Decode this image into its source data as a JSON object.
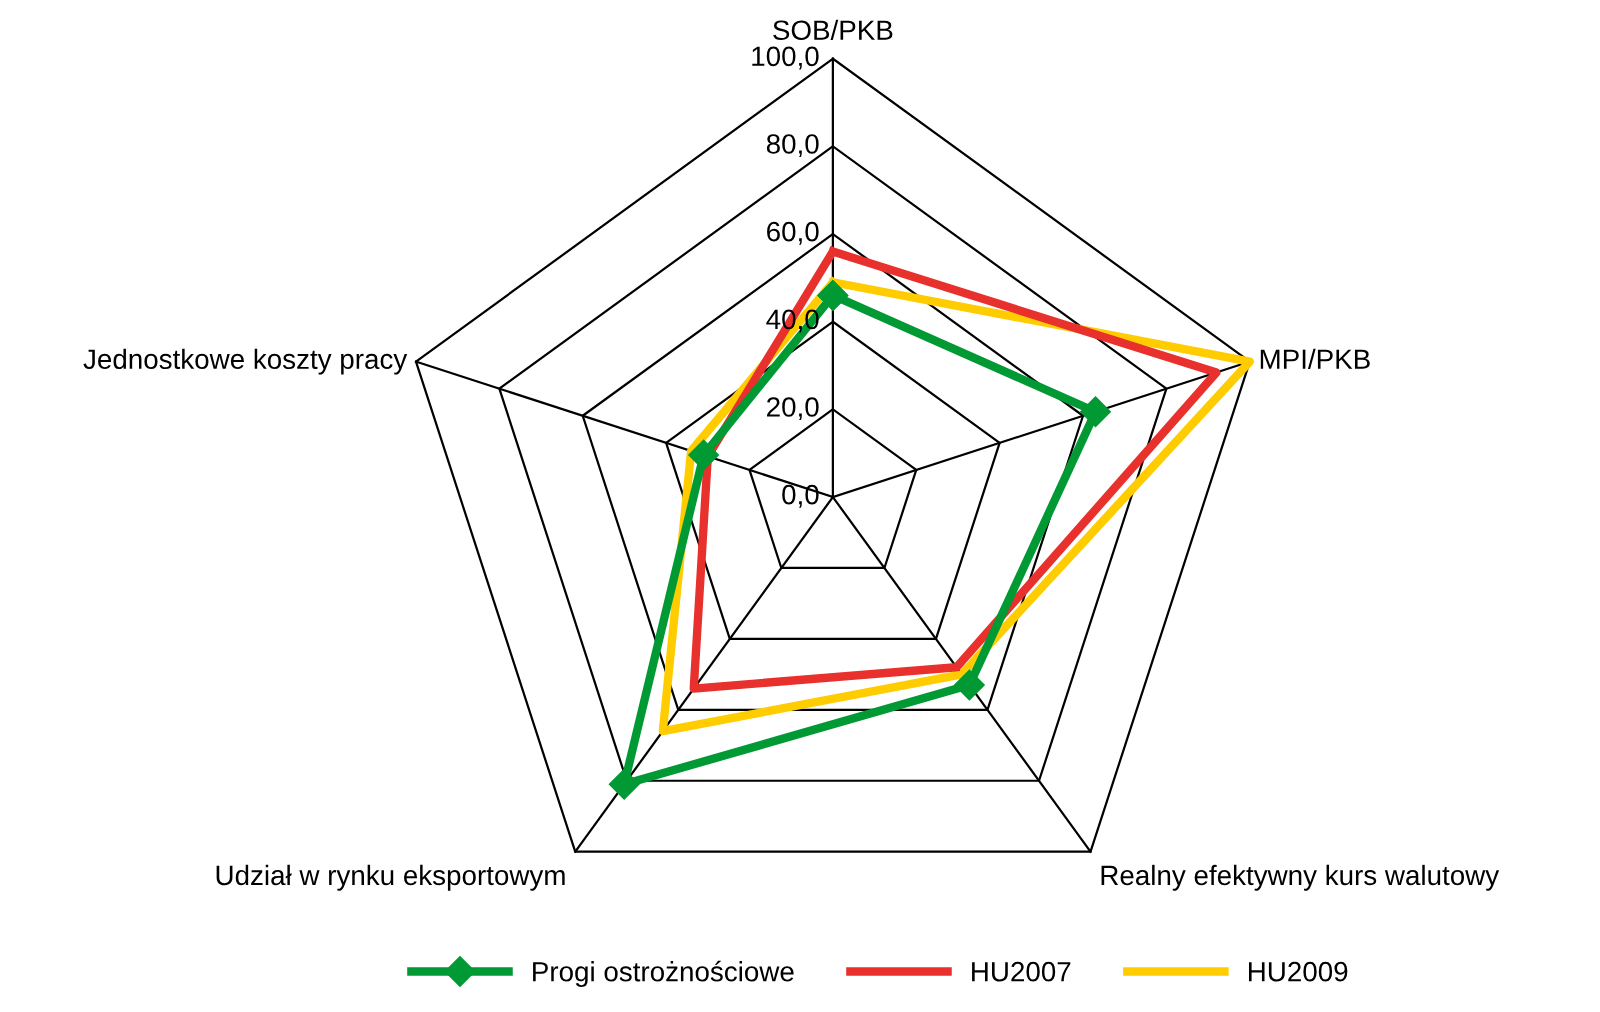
{
  "chart_data": {
    "type": "radar",
    "categories": [
      "SOB/PKB",
      "MPI/PKB",
      "Realny efektywny kurs walutowy",
      "Udział w rynku eksportowym",
      "Jednostkowe koszty pracy"
    ],
    "series": [
      {
        "name": "Progi ostrożnościowe",
        "color": "#009933",
        "values": [
          46,
          63,
          53,
          81,
          31
        ],
        "marker": "diamond"
      },
      {
        "name": "HU2007",
        "color": "#e8302c",
        "values": [
          56,
          92,
          48,
          54,
          30
        ],
        "marker": "none"
      },
      {
        "name": "HU2009",
        "color": "#ffcc00",
        "values": [
          49,
          100,
          50,
          66,
          34
        ],
        "marker": "none"
      }
    ],
    "ylim": [
      0,
      100
    ],
    "yticks": [
      {
        "value": 0,
        "label": "0,0"
      },
      {
        "value": 20,
        "label": "20,0"
      },
      {
        "value": 40,
        "label": "40,0"
      },
      {
        "value": 60,
        "label": "60,0"
      },
      {
        "value": 80,
        "label": "80,0"
      },
      {
        "value": 100,
        "label": "100,0"
      }
    ],
    "grid": true,
    "legend": "bottom",
    "line_style": "solid"
  }
}
